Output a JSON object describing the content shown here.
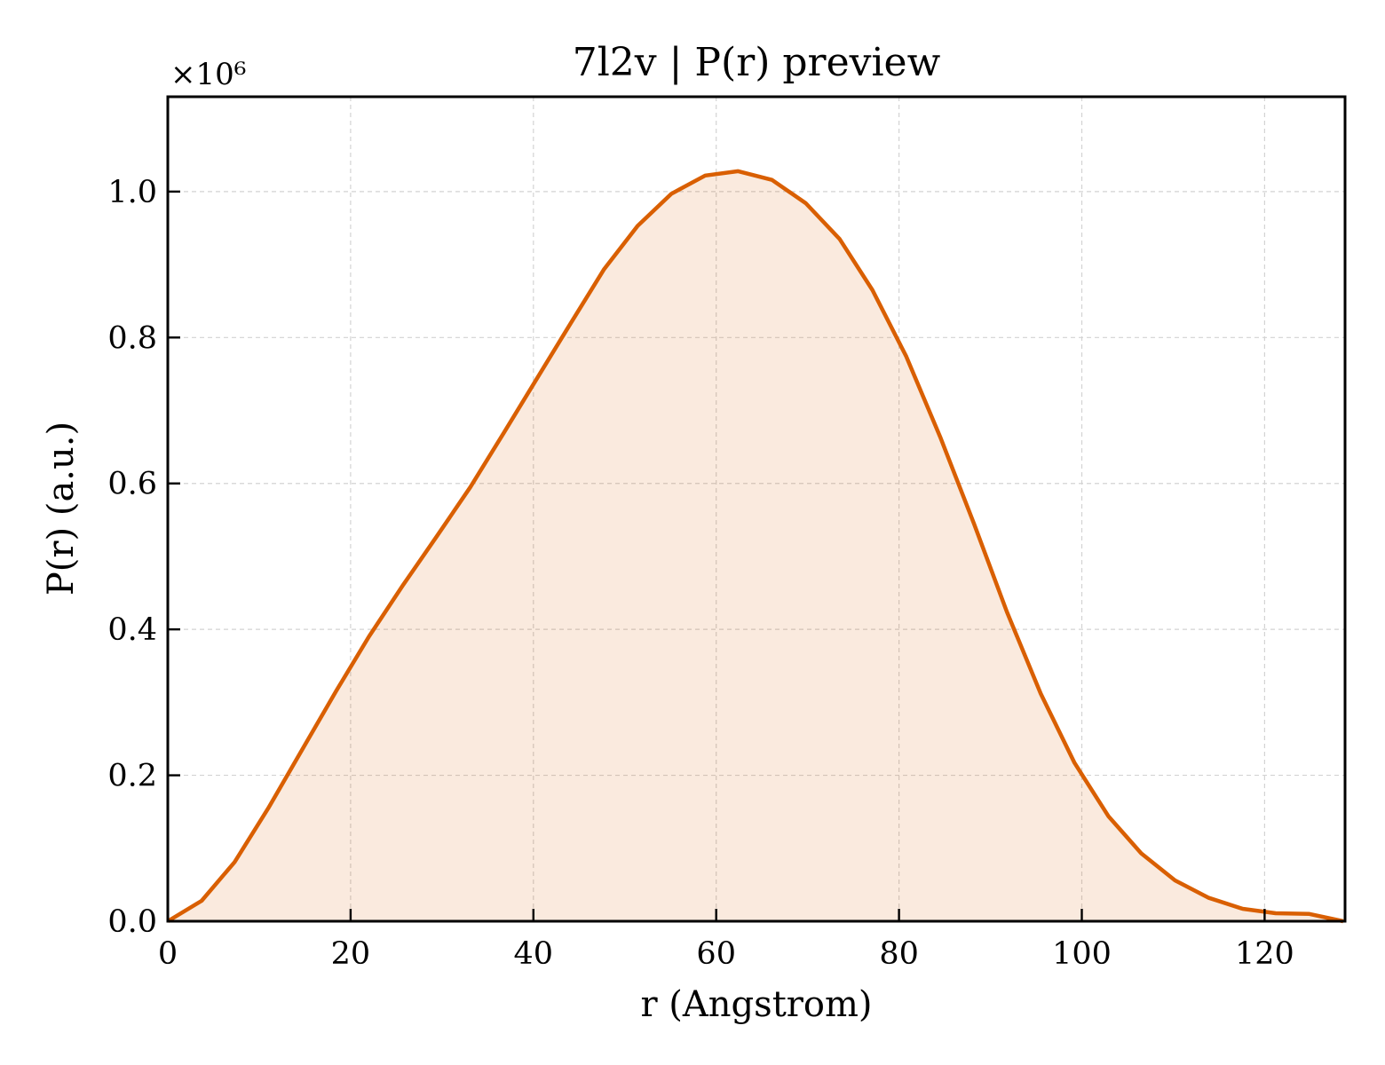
{
  "chart_data": {
    "type": "area",
    "title": "7l2v | P(r) preview",
    "xlabel": "r (Angstrom)",
    "ylabel": "P(r) (a.u.)",
    "y_offset_label": "×10⁶",
    "xlim": [
      0,
      128.8
    ],
    "ylim": [
      0,
      1.13
    ],
    "x_ticks": [
      0,
      20,
      40,
      60,
      80,
      100,
      120
    ],
    "x_tick_labels": [
      "0",
      "20",
      "40",
      "60",
      "80",
      "100",
      "120"
    ],
    "y_ticks": [
      0.0,
      0.2,
      0.4,
      0.6,
      0.8,
      1.0
    ],
    "y_tick_labels": [
      "0.0",
      "0.2",
      "0.4",
      "0.6",
      "0.8",
      "1.0"
    ],
    "grid": true,
    "colors": {
      "line": "#d95f02",
      "fill": "#d95f02",
      "grid": "#d3d3d3"
    },
    "series": [
      {
        "x": [
          0,
          3.7,
          7.3,
          11.0,
          14.7,
          18.4,
          22.0,
          25.7,
          29.4,
          33.1,
          36.7,
          40.4,
          44.1,
          47.7,
          51.4,
          55.1,
          58.8,
          62.4,
          66.1,
          69.8,
          73.5,
          77.1,
          80.8,
          84.5,
          88.2,
          91.8,
          95.5,
          99.2,
          102.9,
          106.5,
          110.2,
          113.9,
          117.6,
          121.2,
          124.9,
          128.6
        ],
        "y": [
          0.0,
          0.028,
          0.081,
          0.155,
          0.235,
          0.315,
          0.39,
          0.46,
          0.527,
          0.595,
          0.668,
          0.744,
          0.82,
          0.893,
          0.953,
          0.997,
          1.022,
          1.028,
          1.016,
          0.984,
          0.935,
          0.865,
          0.774,
          0.664,
          0.545,
          0.424,
          0.312,
          0.217,
          0.144,
          0.093,
          0.056,
          0.032,
          0.017,
          0.011,
          0.01,
          0.0
        ]
      }
    ]
  }
}
